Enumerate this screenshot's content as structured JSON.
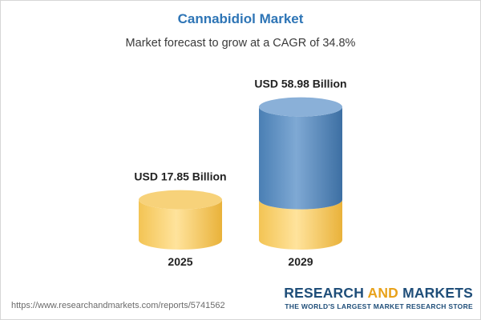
{
  "chart_data": {
    "type": "bar",
    "title": "Cannabidiol Market",
    "subtitle": "Market forecast to grow at a CAGR of 34.8%",
    "categories": [
      "2025",
      "2029"
    ],
    "values": [
      17.85,
      58.98
    ],
    "value_labels": [
      "USD 17.85 Billion",
      "USD 58.98 Billion"
    ],
    "base_value": 17.85,
    "colors": {
      "base": "#f5c85e",
      "growth": "#4f84b8",
      "title": "#2e75b6"
    }
  },
  "footer": {
    "source_url": "https://www.researchandmarkets.com/reports/5741562",
    "brand_research": "RESEARCH",
    "brand_and": "AND",
    "brand_markets": "MARKETS",
    "brand_tagline": "THE WORLD'S LARGEST MARKET RESEARCH STORE"
  }
}
